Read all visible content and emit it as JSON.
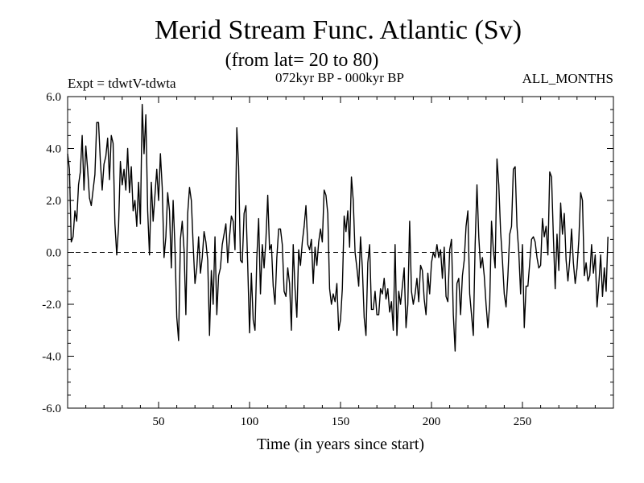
{
  "chart_data": {
    "type": "line",
    "title": "Merid Stream Func. Atlantic (Sv)",
    "subtitle": "(from lat= 20 to 80)",
    "experiment_label": "Expt = tdwtV-tdwta",
    "period_label": "072kyr BP - 000kyr BP",
    "months_label": "ALL_MONTHS",
    "xlabel": "Time (in years since start)",
    "ylabel": "",
    "xlim": [
      0,
      300
    ],
    "ylim": [
      -6.0,
      6.0
    ],
    "x_ticks": [
      50,
      100,
      150,
      200,
      250
    ],
    "x_tick_labels": [
      "50",
      "100",
      "150",
      "200",
      "250"
    ],
    "y_ticks": [
      -6.0,
      -4.0,
      -2.0,
      0.0,
      2.0,
      4.0,
      6.0
    ],
    "y_tick_labels": [
      "-6.0",
      "-4.0",
      "-2.0",
      "0.0",
      "2.0",
      "4.0",
      "6.0"
    ],
    "zero_line": "dashed",
    "grid": false,
    "series": [
      {
        "name": "Merid Stream Func. Atlantic",
        "color": "#000000",
        "x_start": 0,
        "x_step": 1,
        "values": [
          3.8,
          3.2,
          0.4,
          0.6,
          1.6,
          1.2,
          2.6,
          3.1,
          4.5,
          2.4,
          4.1,
          3.2,
          2.1,
          1.8,
          2.4,
          3.0,
          5.0,
          5.0,
          3.5,
          2.4,
          3.4,
          3.7,
          4.4,
          2.8,
          4.5,
          4.2,
          1.1,
          -0.1,
          1.0,
          3.5,
          2.6,
          3.2,
          2.4,
          4.0,
          2.3,
          3.3,
          1.6,
          2.0,
          1.0,
          2.7,
          1.1,
          5.7,
          3.8,
          5.3,
          1.6,
          -0.1,
          2.7,
          1.2,
          2.2,
          3.2,
          2.0,
          3.8,
          2.5,
          -0.2,
          0.6,
          2.3,
          1.6,
          -0.6,
          2.0,
          0.2,
          -2.5,
          -3.4,
          0.5,
          1.2,
          0.1,
          -2.4,
          1.5,
          2.5,
          2.0,
          0.3,
          -1.2,
          -0.6,
          0.6,
          -0.8,
          -0.2,
          0.8,
          0.4,
          -0.3,
          -3.2,
          -0.7,
          -2.0,
          0.6,
          -2.4,
          -0.9,
          -0.6,
          0.3,
          0.7,
          1.1,
          -0.4,
          0.6,
          1.4,
          1.2,
          0.1,
          4.8,
          3.3,
          -0.3,
          -0.4,
          1.5,
          1.8,
          -0.5,
          -3.1,
          -0.8,
          -2.6,
          -3.0,
          -0.2,
          1.3,
          -1.6,
          0.3,
          -0.6,
          0.5,
          2.2,
          0.1,
          0.3,
          -1.3,
          -2.0,
          -0.2,
          0.9,
          0.9,
          0.3,
          -1.5,
          -1.7,
          -0.6,
          -1.2,
          -3.0,
          0.3,
          -1.4,
          -2.5,
          0.1,
          -0.5,
          0.4,
          1.0,
          1.8,
          0.3,
          0.1,
          0.5,
          -1.2,
          0.2,
          -0.5,
          0.4,
          0.9,
          0.4,
          2.4,
          2.2,
          1.5,
          -1.4,
          -2.0,
          -1.6,
          -1.9,
          -1.2,
          -3.0,
          -2.6,
          -1.4,
          1.4,
          0.8,
          1.6,
          0.2,
          2.9,
          2.0,
          0.0,
          -0.6,
          -1.3,
          0.6,
          -0.6,
          -2.5,
          -3.2,
          -0.4,
          0.3,
          -2.2,
          -2.2,
          -1.5,
          -2.4,
          -2.4,
          -1.4,
          -1.6,
          -1.0,
          -1.8,
          -1.4,
          -2.3,
          -1.9,
          -3.0,
          0.3,
          -3.2,
          -1.5,
          -2.0,
          -1.3,
          -0.6,
          -2.9,
          -2.0,
          1.2,
          -1.5,
          -2.0,
          -1.6,
          -1.0,
          -1.9,
          -0.5,
          -0.7,
          -1.8,
          -2.4,
          -0.8,
          -1.6,
          -0.4,
          0.0,
          -0.2,
          0.3,
          -0.2,
          0.1,
          -1.0,
          0.2,
          -1.7,
          -1.9,
          0.1,
          0.5,
          -2.4,
          -3.8,
          -1.2,
          -1.0,
          -2.4,
          -0.9,
          -0.3,
          1.0,
          1.6,
          -1.6,
          -2.4,
          -3.2,
          0.3,
          2.6,
          0.6,
          -0.6,
          -0.2,
          -0.9,
          -2.0,
          -2.9,
          -2.0,
          1.2,
          0.1,
          -0.6,
          3.6,
          2.6,
          0.8,
          -0.3,
          -1.6,
          -2.1,
          -0.9,
          0.7,
          1.0,
          3.2,
          3.3,
          1.0,
          0.0,
          -1.6,
          0.3,
          -2.9,
          -1.3,
          -1.3,
          -0.4,
          0.5,
          0.6,
          0.4,
          -0.2,
          -0.6,
          -0.5,
          1.3,
          0.6,
          1.0,
          -0.1,
          3.1,
          2.9,
          0.6,
          -1.4,
          0.7,
          -0.7,
          1.9,
          0.7,
          1.5,
          -0.3,
          -1.1,
          -0.3,
          0.9,
          -0.4,
          -1.2,
          -0.6,
          0.5,
          2.3,
          2.0,
          -0.9,
          -0.4,
          -1.1,
          -0.9,
          0.3,
          -0.8,
          -0.1,
          -2.1,
          -1.2,
          -0.1,
          -1.7,
          -0.6,
          -1.5,
          0.6
        ]
      }
    ]
  }
}
